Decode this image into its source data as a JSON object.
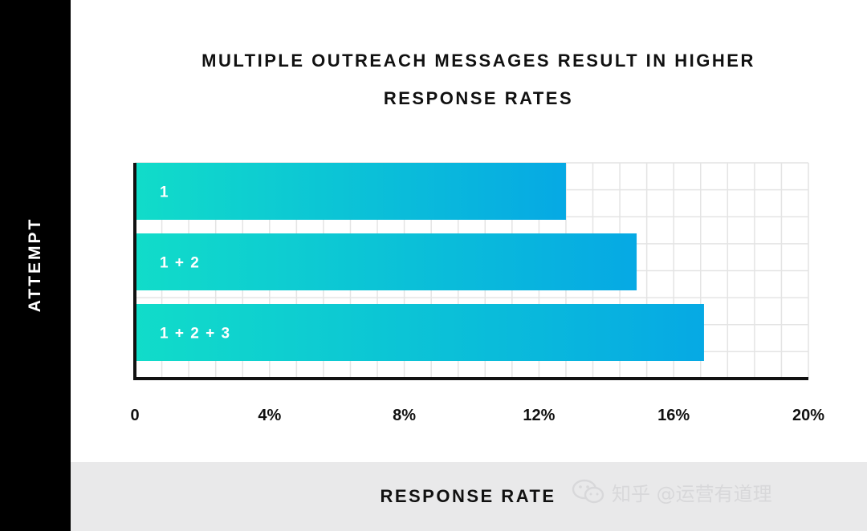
{
  "chart_data": {
    "type": "bar",
    "orientation": "horizontal",
    "title": "MULTIPLE OUTREACH MESSAGES RESULT IN HIGHER RESPONSE RATES",
    "title_lines": [
      "MULTIPLE OUTREACH MESSAGES RESULT IN HIGHER",
      "RESPONSE RATES"
    ],
    "xlabel": "RESPONSE RATE",
    "ylabel": "ATTEMPT",
    "categories": [
      "1",
      "1 + 2",
      "1 + 2 + 3"
    ],
    "values": [
      12.8,
      14.9,
      16.9
    ],
    "unit": "%",
    "xlim": [
      0,
      20
    ],
    "xticks": [
      0,
      4,
      8,
      12,
      16,
      20
    ],
    "xtick_labels": [
      "0",
      "4%",
      "8%",
      "12%",
      "16%",
      "20%"
    ],
    "grid": true,
    "legend": "none"
  },
  "colors": {
    "bar_gradient_start": "#11dcc9",
    "bar_gradient_end": "#06a9e4",
    "left_band": "#000000",
    "bottom_band": "#e9e9ea",
    "grid": "#e4e4e4",
    "axis": "#111111"
  },
  "watermark": {
    "text": "知乎 @运营有道理",
    "icon": "wechat-icon"
  }
}
